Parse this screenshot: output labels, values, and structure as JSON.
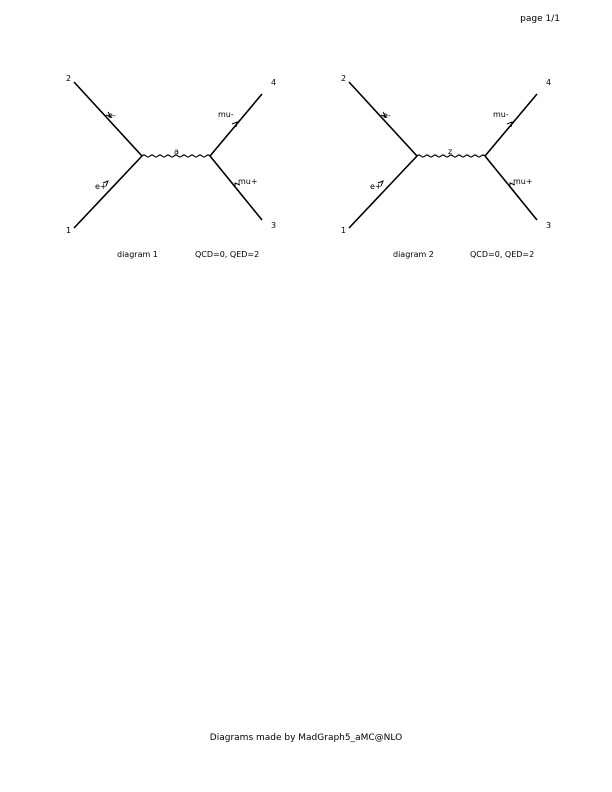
{
  "page": {
    "number_label": "page 1/1"
  },
  "diagrams": [
    {
      "external_labels": [
        "1",
        "2",
        "3",
        "4"
      ],
      "particles": {
        "incoming_top": "e-",
        "incoming_bottom": "e+",
        "propagator": "a",
        "outgoing_top": "mu-",
        "outgoing_bottom": "mu+"
      },
      "caption": "diagram 1",
      "couplings": "QCD=0, QED=2"
    },
    {
      "external_labels": [
        "1",
        "2",
        "3",
        "4"
      ],
      "particles": {
        "incoming_top": "e-",
        "incoming_bottom": "e+",
        "propagator": "z",
        "outgoing_top": "mu-",
        "outgoing_bottom": "mu+"
      },
      "caption": "diagram 2",
      "couplings": "QCD=0, QED=2"
    }
  ],
  "footer": {
    "credit": "Diagrams made by MadGraph5_aMC@NLO"
  }
}
